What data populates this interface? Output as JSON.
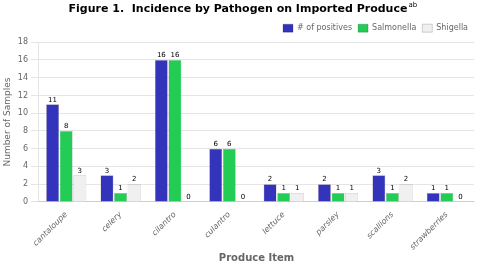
{
  "chart_data": {
    "type": "bar",
    "title": "Figure 1.  Incidence by Pathogen on Imported Produce",
    "annotations": [
      "ab"
    ],
    "xlabel": "Produce Item",
    "ylabel": "Number of Samples",
    "categories": [
      "cantaloupe",
      "celery",
      "cilantro",
      "culantro",
      "lettuce",
      "parsley",
      "scallions",
      "strawberries"
    ],
    "series": [
      {
        "name": "# of positives",
        "color": "#3333bb",
        "values": [
          11,
          3,
          16,
          6,
          2,
          2,
          3,
          1
        ]
      },
      {
        "name": "Salmonella",
        "color": "#22cc55",
        "values": [
          8,
          1,
          16,
          6,
          1,
          1,
          1,
          1
        ]
      },
      {
        "name": "Shigella",
        "color": "#f0f0f0",
        "values": [
          3,
          2,
          0,
          0,
          1,
          1,
          2,
          0
        ]
      }
    ],
    "ylim": [
      0,
      18
    ],
    "yticks": [
      0,
      2,
      4,
      6,
      8,
      10,
      12,
      14,
      16,
      18
    ],
    "grid": true,
    "legend": "upper right",
    "data_labels": true
  }
}
